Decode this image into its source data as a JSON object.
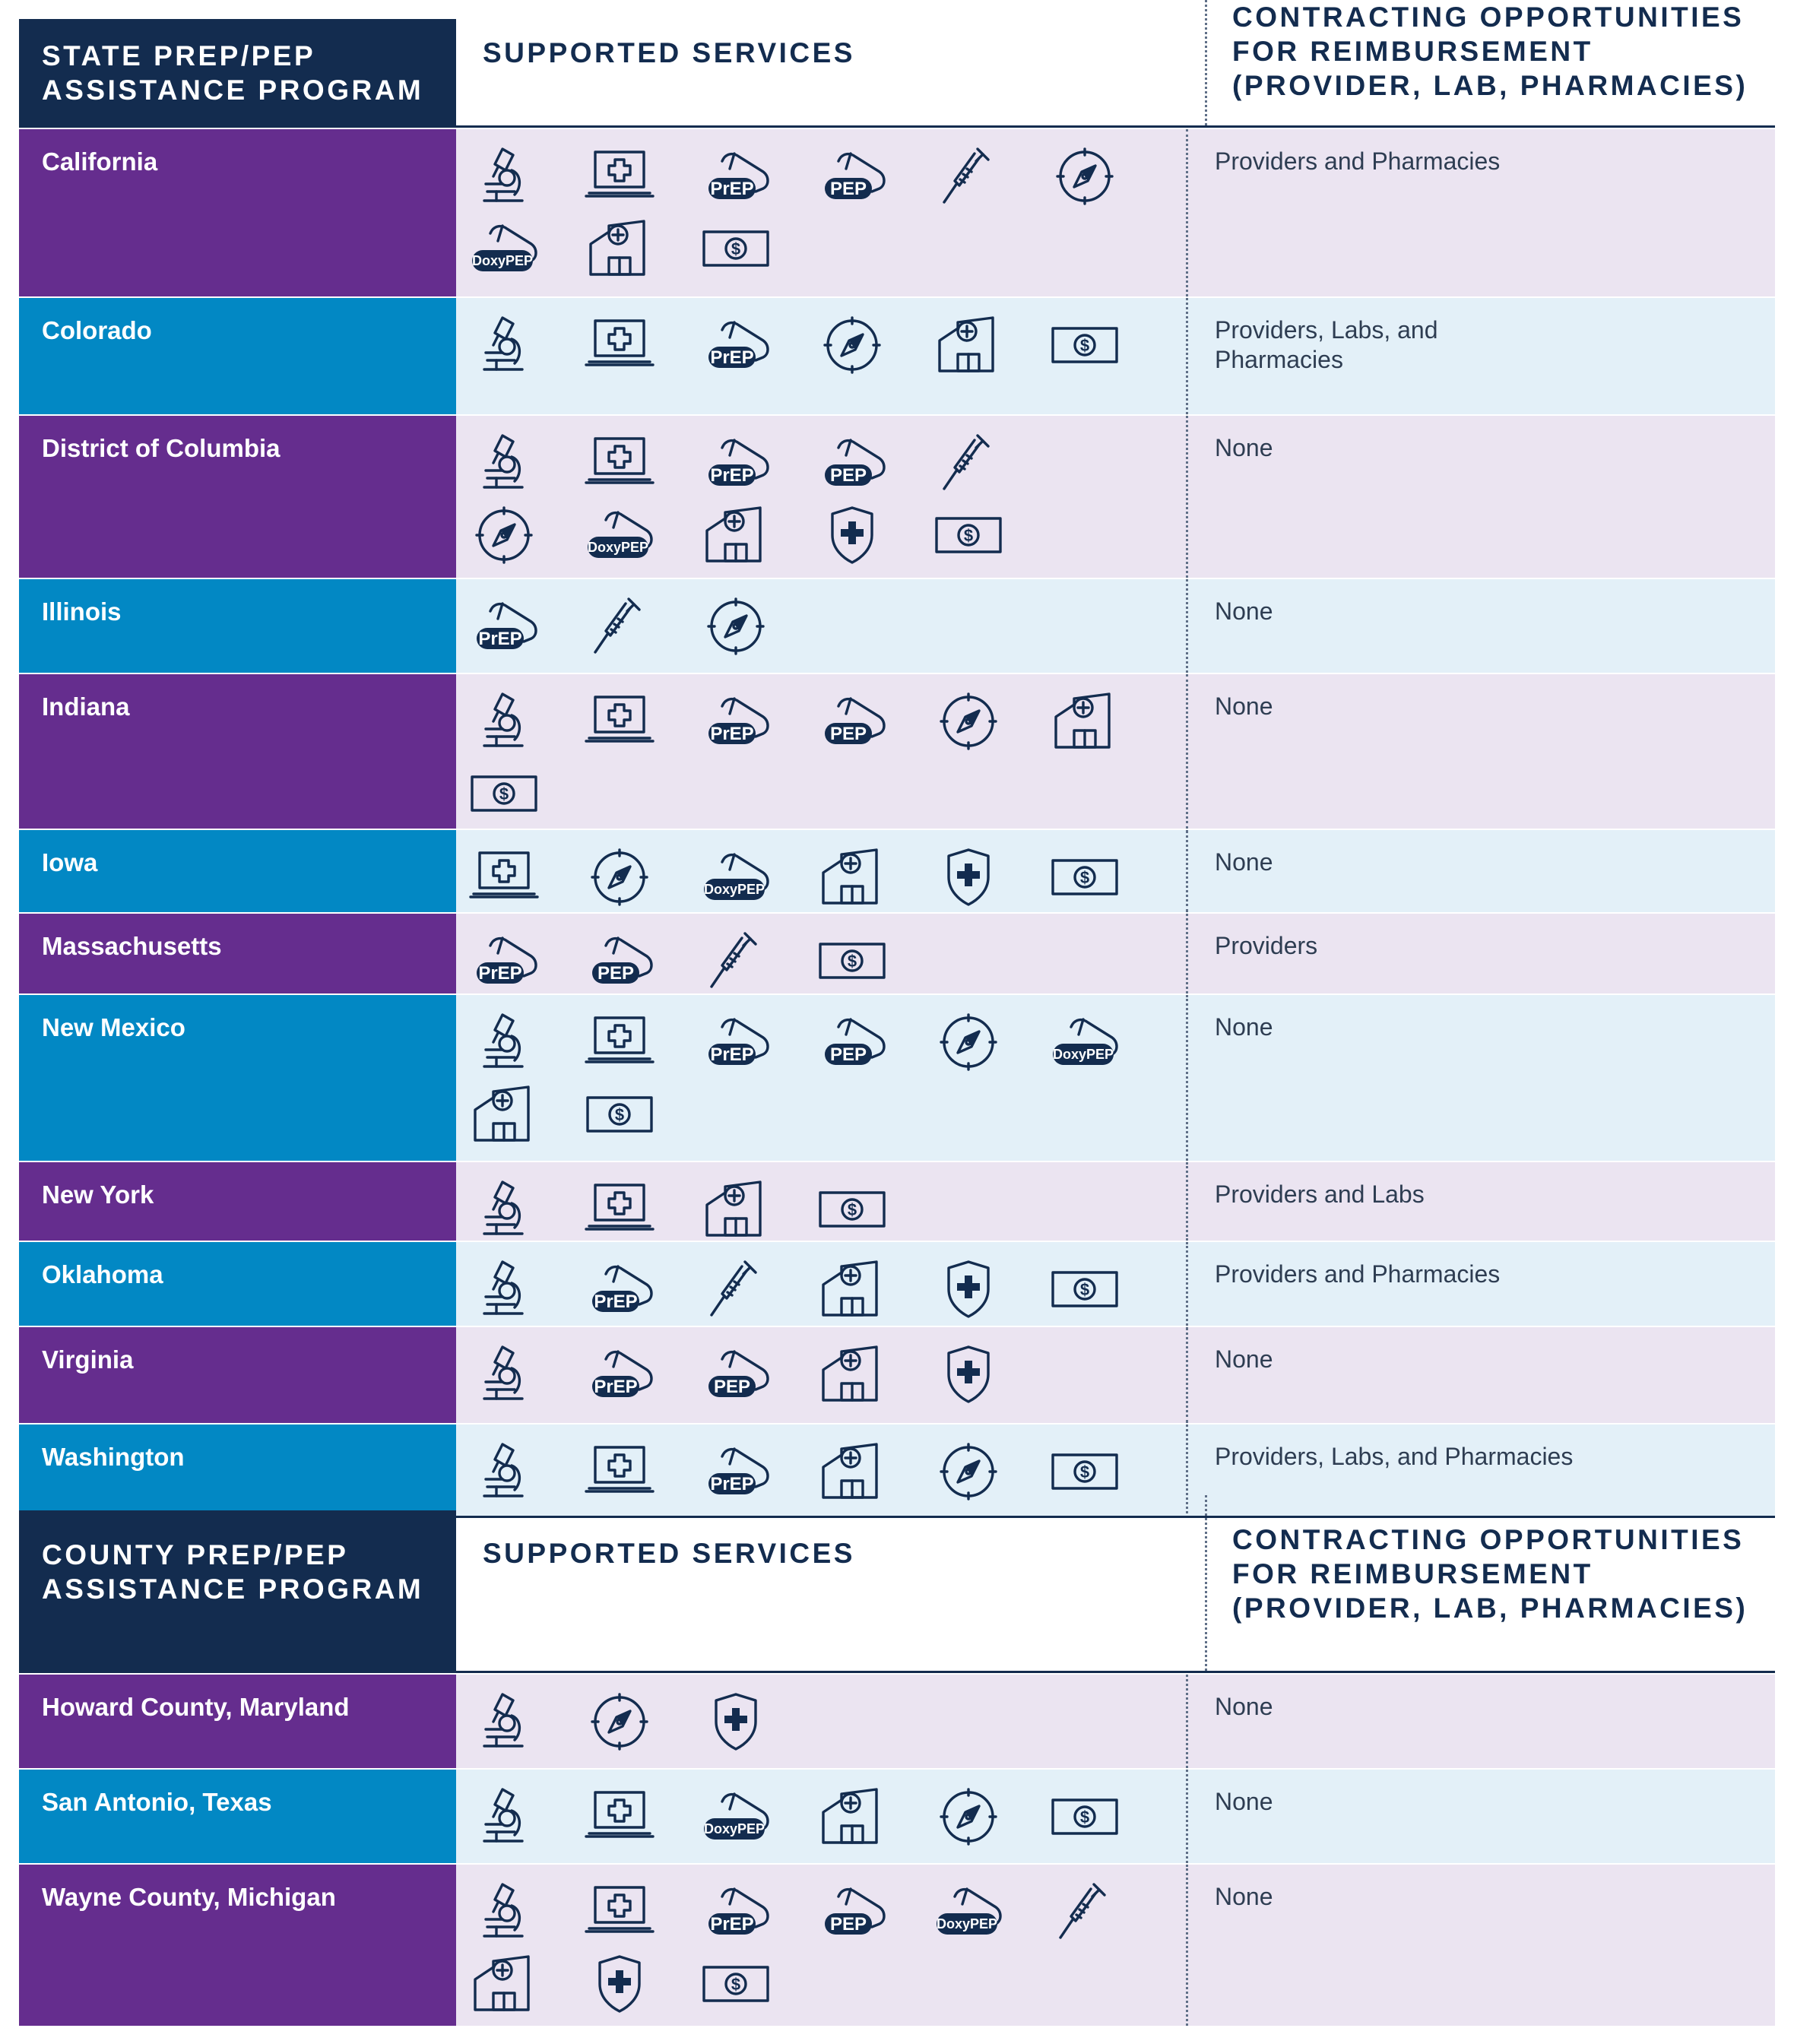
{
  "sections": [
    {
      "id": "state",
      "header": {
        "program": [
          "STATE PREP/PEP",
          "ASSISTANCE PROGRAM"
        ],
        "services": "SUPPORTED SERVICES",
        "contracting": [
          "CONTRACTING OPPORTUNITIES",
          "FOR REIMBURSEMENT",
          "(PROVIDER, LAB, PHARMACIES)"
        ]
      },
      "rows": [
        {
          "name": "California",
          "contracting": "Providers and Pharmacies",
          "icons": [
            [
              "microscope",
              "laptop-cross",
              "prep-pill",
              "pep-pill",
              "syringe",
              "compass"
            ],
            [
              "doxypep-pill",
              "clinic",
              "dollar-bill"
            ]
          ]
        },
        {
          "name": "Colorado",
          "contracting": "Providers, Labs, and\nPharmacies",
          "icons": [
            [
              "microscope",
              "laptop-cross",
              "prep-pill",
              "compass",
              "clinic",
              "dollar-bill"
            ]
          ]
        },
        {
          "name": "District of Columbia",
          "contracting": "None",
          "icons": [
            [
              "microscope",
              "laptop-cross",
              "prep-pill",
              "pep-pill",
              "syringe"
            ],
            [
              "compass",
              "doxypep-pill",
              "clinic",
              "shield-cross",
              "dollar-bill"
            ]
          ]
        },
        {
          "name": "Illinois",
          "contracting": "None",
          "icons": [
            [
              "prep-pill",
              "syringe",
              "compass"
            ]
          ]
        },
        {
          "name": "Indiana",
          "contracting": "None",
          "icons": [
            [
              "microscope",
              "laptop-cross",
              "prep-pill",
              "pep-pill",
              "compass",
              "clinic"
            ],
            [
              "dollar-bill"
            ]
          ]
        },
        {
          "name": "Iowa",
          "contracting": "None",
          "icons": [
            [
              "laptop-cross",
              "compass",
              "doxypep-pill",
              "clinic",
              "shield-cross",
              "dollar-bill"
            ]
          ]
        },
        {
          "name": "Massachusetts",
          "contracting": "Providers",
          "icons": [
            [
              "prep-pill",
              "pep-pill",
              "syringe",
              "dollar-bill"
            ]
          ]
        },
        {
          "name": "New Mexico",
          "contracting": "None",
          "icons": [
            [
              "microscope",
              "laptop-cross",
              "prep-pill",
              "pep-pill",
              "compass",
              "doxypep-pill"
            ],
            [
              "clinic",
              "dollar-bill"
            ]
          ]
        },
        {
          "name": "New York",
          "contracting": "Providers and Labs",
          "icons": [
            [
              "microscope",
              "laptop-cross",
              "clinic",
              "dollar-bill"
            ]
          ]
        },
        {
          "name": "Oklahoma",
          "contracting": "Providers and Pharmacies",
          "icons": [
            [
              "microscope",
              "prep-pill",
              "syringe",
              "clinic",
              "shield-cross",
              "dollar-bill"
            ]
          ]
        },
        {
          "name": "Virginia",
          "contracting": "None",
          "icons": [
            [
              "microscope",
              "prep-pill",
              "pep-pill",
              "clinic",
              "shield-cross"
            ]
          ]
        },
        {
          "name": "Washington",
          "contracting": "Providers, Labs, and Pharmacies",
          "icons": [
            [
              "microscope",
              "laptop-cross",
              "prep-pill",
              "clinic",
              "compass",
              "dollar-bill"
            ]
          ]
        }
      ]
    },
    {
      "id": "county",
      "header": {
        "program": [
          "COUNTY PREP/PEP",
          "ASSISTANCE PROGRAM"
        ],
        "services": "SUPPORTED SERVICES",
        "contracting": [
          "CONTRACTING OPPORTUNITIES",
          "FOR REIMBURSEMENT",
          "(PROVIDER, LAB, PHARMACIES)"
        ]
      },
      "rows": [
        {
          "name": "Howard County, Maryland",
          "contracting": "None",
          "icons": [
            [
              "microscope",
              "compass",
              "shield-cross"
            ]
          ]
        },
        {
          "name": "San Antonio, Texas",
          "contracting": "None",
          "icons": [
            [
              "microscope",
              "laptop-cross",
              "doxypep-pill",
              "clinic",
              "compass",
              "dollar-bill"
            ]
          ]
        },
        {
          "name": "Wayne County, Michigan",
          "contracting": "None",
          "icons": [
            [
              "microscope",
              "laptop-cross",
              "prep-pill",
              "pep-pill",
              "doxypep-pill",
              "syringe"
            ],
            [
              "clinic",
              "shield-cross",
              "dollar-bill"
            ]
          ]
        }
      ]
    }
  ],
  "pill_labels": {
    "prep-pill": "PrEP",
    "pep-pill": "PEP",
    "doxypep-pill": "DoxyPEP"
  },
  "colors": {
    "navy": "#132c4f",
    "purple": "#652d8e",
    "blue": "#0288c4",
    "purple_tint": "#ebe4f1",
    "blue_tint": "#e3f0f8"
  }
}
